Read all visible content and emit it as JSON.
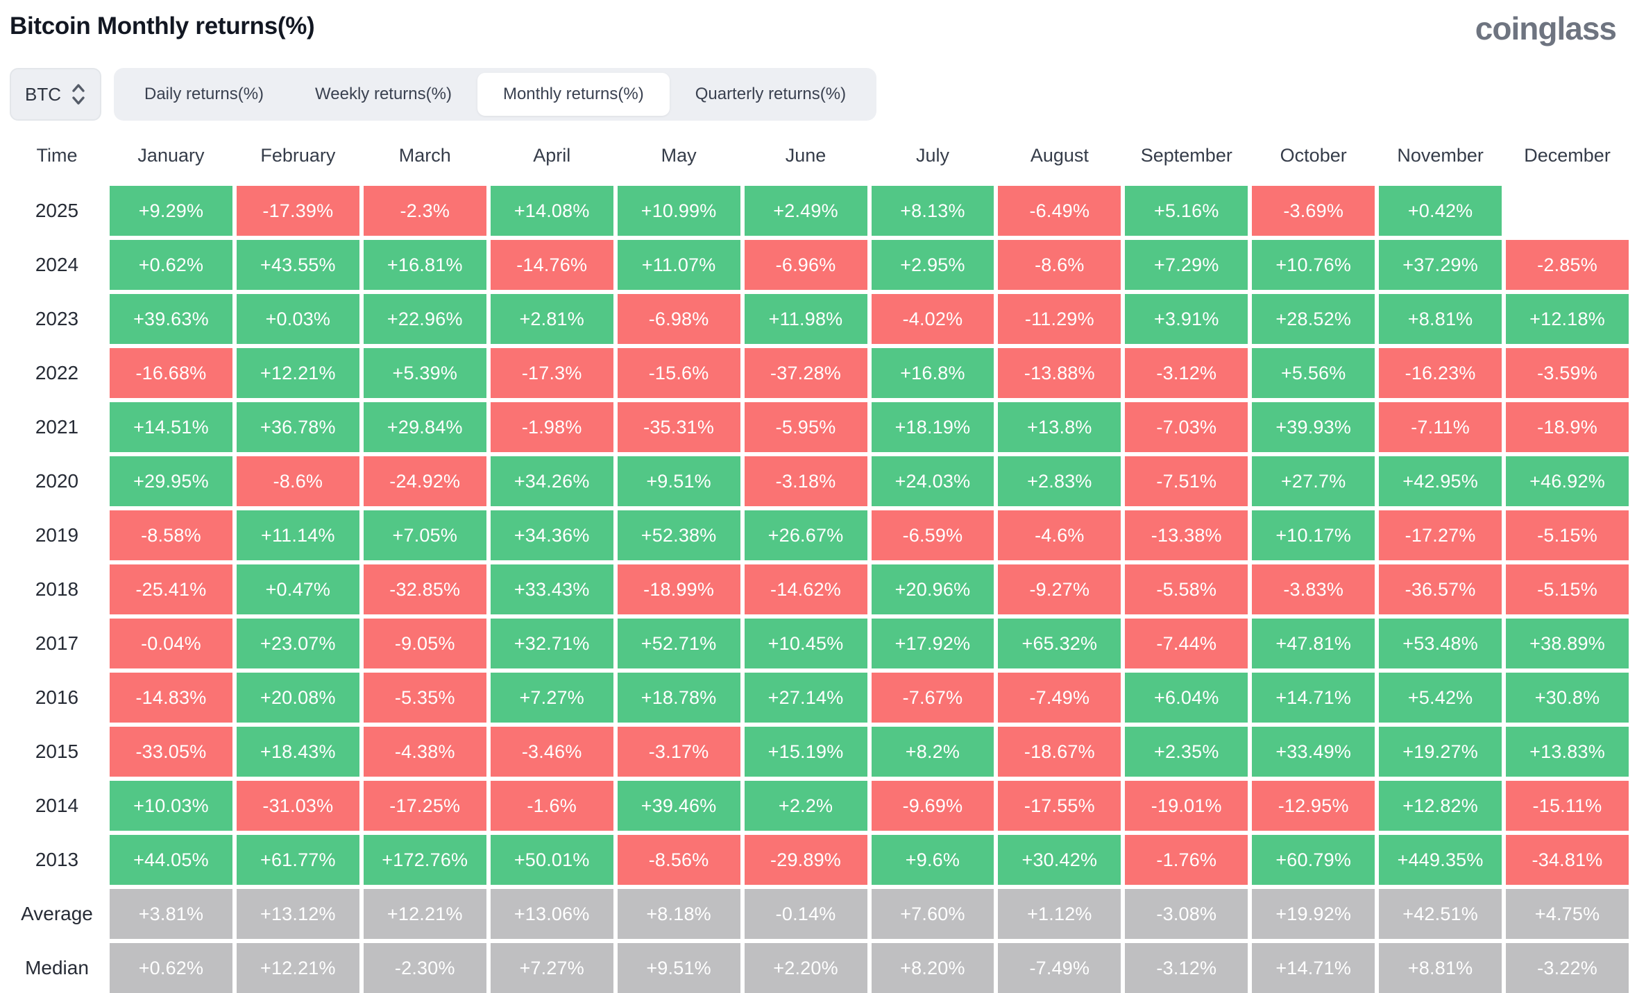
{
  "page": {
    "title": "Bitcoin Monthly returns(%)",
    "brand": "coinglass"
  },
  "controls": {
    "symbol_select": {
      "value": "BTC"
    },
    "tabs": [
      {
        "label": "Daily returns(%)",
        "active": false
      },
      {
        "label": "Weekly returns(%)",
        "active": false
      },
      {
        "label": "Monthly returns(%)",
        "active": true
      },
      {
        "label": "Quarterly returns(%)",
        "active": false
      }
    ]
  },
  "colors": {
    "positive": "#52c786",
    "negative": "#fa7373",
    "summary": "#bfbfc1"
  },
  "chart_data": {
    "type": "heatmap",
    "title": "Bitcoin Monthly returns(%)",
    "row_header": "Time",
    "columns": [
      "January",
      "February",
      "March",
      "April",
      "May",
      "June",
      "July",
      "August",
      "September",
      "October",
      "November",
      "December"
    ],
    "rows": [
      {
        "label": "2025",
        "summary": false,
        "values": [
          "+9.29%",
          "-17.39%",
          "-2.3%",
          "+14.08%",
          "+10.99%",
          "+2.49%",
          "+8.13%",
          "-6.49%",
          "+5.16%",
          "-3.69%",
          "+0.42%",
          ""
        ]
      },
      {
        "label": "2024",
        "summary": false,
        "values": [
          "+0.62%",
          "+43.55%",
          "+16.81%",
          "-14.76%",
          "+11.07%",
          "-6.96%",
          "+2.95%",
          "-8.6%",
          "+7.29%",
          "+10.76%",
          "+37.29%",
          "-2.85%"
        ]
      },
      {
        "label": "2023",
        "summary": false,
        "values": [
          "+39.63%",
          "+0.03%",
          "+22.96%",
          "+2.81%",
          "-6.98%",
          "+11.98%",
          "-4.02%",
          "-11.29%",
          "+3.91%",
          "+28.52%",
          "+8.81%",
          "+12.18%"
        ]
      },
      {
        "label": "2022",
        "summary": false,
        "values": [
          "-16.68%",
          "+12.21%",
          "+5.39%",
          "-17.3%",
          "-15.6%",
          "-37.28%",
          "+16.8%",
          "-13.88%",
          "-3.12%",
          "+5.56%",
          "-16.23%",
          "-3.59%"
        ]
      },
      {
        "label": "2021",
        "summary": false,
        "values": [
          "+14.51%",
          "+36.78%",
          "+29.84%",
          "-1.98%",
          "-35.31%",
          "-5.95%",
          "+18.19%",
          "+13.8%",
          "-7.03%",
          "+39.93%",
          "-7.11%",
          "-18.9%"
        ]
      },
      {
        "label": "2020",
        "summary": false,
        "values": [
          "+29.95%",
          "-8.6%",
          "-24.92%",
          "+34.26%",
          "+9.51%",
          "-3.18%",
          "+24.03%",
          "+2.83%",
          "-7.51%",
          "+27.7%",
          "+42.95%",
          "+46.92%"
        ]
      },
      {
        "label": "2019",
        "summary": false,
        "values": [
          "-8.58%",
          "+11.14%",
          "+7.05%",
          "+34.36%",
          "+52.38%",
          "+26.67%",
          "-6.59%",
          "-4.6%",
          "-13.38%",
          "+10.17%",
          "-17.27%",
          "-5.15%"
        ]
      },
      {
        "label": "2018",
        "summary": false,
        "values": [
          "-25.41%",
          "+0.47%",
          "-32.85%",
          "+33.43%",
          "-18.99%",
          "-14.62%",
          "+20.96%",
          "-9.27%",
          "-5.58%",
          "-3.83%",
          "-36.57%",
          "-5.15%"
        ]
      },
      {
        "label": "2017",
        "summary": false,
        "values": [
          "-0.04%",
          "+23.07%",
          "-9.05%",
          "+32.71%",
          "+52.71%",
          "+10.45%",
          "+17.92%",
          "+65.32%",
          "-7.44%",
          "+47.81%",
          "+53.48%",
          "+38.89%"
        ]
      },
      {
        "label": "2016",
        "summary": false,
        "values": [
          "-14.83%",
          "+20.08%",
          "-5.35%",
          "+7.27%",
          "+18.78%",
          "+27.14%",
          "-7.67%",
          "-7.49%",
          "+6.04%",
          "+14.71%",
          "+5.42%",
          "+30.8%"
        ]
      },
      {
        "label": "2015",
        "summary": false,
        "values": [
          "-33.05%",
          "+18.43%",
          "-4.38%",
          "-3.46%",
          "-3.17%",
          "+15.19%",
          "+8.2%",
          "-18.67%",
          "+2.35%",
          "+33.49%",
          "+19.27%",
          "+13.83%"
        ]
      },
      {
        "label": "2014",
        "summary": false,
        "values": [
          "+10.03%",
          "-31.03%",
          "-17.25%",
          "-1.6%",
          "+39.46%",
          "+2.2%",
          "-9.69%",
          "-17.55%",
          "-19.01%",
          "-12.95%",
          "+12.82%",
          "-15.11%"
        ]
      },
      {
        "label": "2013",
        "summary": false,
        "values": [
          "+44.05%",
          "+61.77%",
          "+172.76%",
          "+50.01%",
          "-8.56%",
          "-29.89%",
          "+9.6%",
          "+30.42%",
          "-1.76%",
          "+60.79%",
          "+449.35%",
          "-34.81%"
        ]
      },
      {
        "label": "Average",
        "summary": true,
        "values": [
          "+3.81%",
          "+13.12%",
          "+12.21%",
          "+13.06%",
          "+8.18%",
          "-0.14%",
          "+7.60%",
          "+1.12%",
          "-3.08%",
          "+19.92%",
          "+42.51%",
          "+4.75%"
        ]
      },
      {
        "label": "Median",
        "summary": true,
        "values": [
          "+0.62%",
          "+12.21%",
          "-2.30%",
          "+7.27%",
          "+9.51%",
          "+2.20%",
          "+8.20%",
          "-7.49%",
          "-3.12%",
          "+14.71%",
          "+8.81%",
          "-3.22%"
        ]
      }
    ]
  }
}
